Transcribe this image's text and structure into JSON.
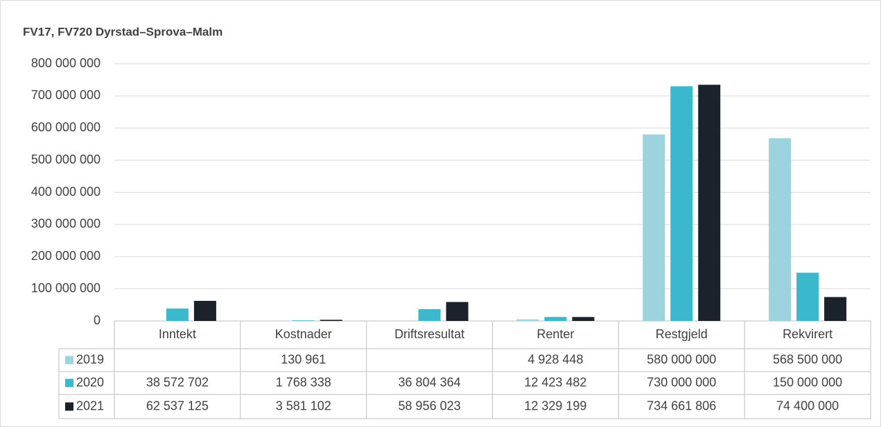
{
  "chart_data": {
    "type": "bar",
    "title": "FV17, FV720 Dyrstad–Sprova–Malm",
    "categories": [
      "Inntekt",
      "Kostnader",
      "Driftsresultat",
      "Renter",
      "Restgjeld",
      "Rekvirert"
    ],
    "series": [
      {
        "name": "2019",
        "color": "#9dd3df",
        "values": [
          null,
          130961,
          null,
          4928448,
          580000000,
          568500000
        ],
        "value_labels": [
          null,
          "130 961",
          null,
          "4 928 448",
          "580 000 000",
          "568 500 000"
        ]
      },
      {
        "name": "2020",
        "color": "#3bb8cc",
        "values": [
          38572702,
          1768338,
          36804364,
          12423482,
          730000000,
          150000000
        ],
        "value_labels": [
          "38 572 702",
          "1 768 338",
          "36 804 364",
          "12 423 482",
          "730 000 000",
          "150 000 000"
        ]
      },
      {
        "name": "2021",
        "color": "#1b222b",
        "values": [
          62537125,
          3581102,
          58956023,
          12329199,
          734661806,
          74400000
        ],
        "value_labels": [
          "62 537 125",
          "3 581 102",
          "58 956 023",
          "12 329 199",
          "734 661 806",
          "74 400 000"
        ]
      }
    ],
    "ylim": [
      0,
      800000000
    ],
    "yticks": [
      0,
      {
        "value": 100000000,
        "label": "100 000 000"
      },
      {
        "value": 200000000,
        "label": "200 000 000"
      },
      {
        "value": 300000000,
        "label": "300 000 000"
      },
      {
        "value": 400000000,
        "label": "400 000 000"
      },
      {
        "value": 500000000,
        "label": "500 000 000"
      },
      {
        "value": 600000000,
        "label": "600 000 000"
      },
      {
        "value": 700000000,
        "label": "700 000 000"
      },
      {
        "value": 800000000,
        "label": "800 000 000"
      }
    ],
    "grid": true
  }
}
